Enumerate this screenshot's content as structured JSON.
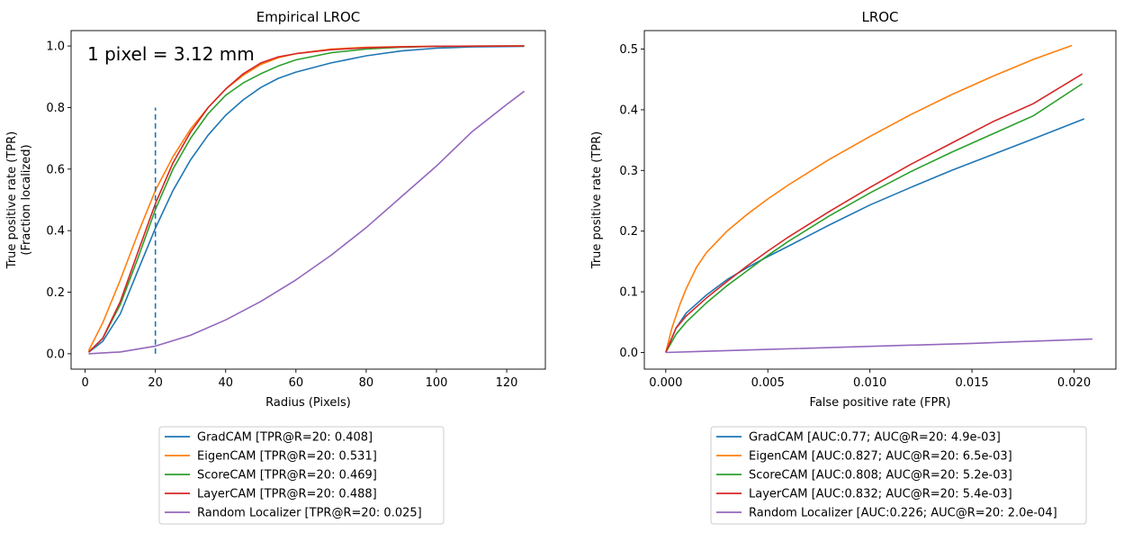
{
  "chart_data": [
    {
      "type": "line",
      "title": "Empirical LROC",
      "xlabel": "Radius (Pixels)",
      "ylabel": [
        "True positive rate (TPR)",
        "(Fraction localized)"
      ],
      "xlim": [
        -4,
        131
      ],
      "ylim": [
        -0.05,
        1.05
      ],
      "xticks": [
        0,
        20,
        40,
        60,
        80,
        100,
        120
      ],
      "xtick_labels": [
        "0",
        "20",
        "40",
        "60",
        "80",
        "100",
        "120"
      ],
      "yticks": [
        0.0,
        0.2,
        0.4,
        0.6,
        0.8,
        1.0
      ],
      "ytick_labels": [
        "0.0",
        "0.2",
        "0.4",
        "0.6",
        "0.8",
        "1.0"
      ],
      "grid": false,
      "legend_placement": "below",
      "annotation": "1 pixel = 3.12 mm",
      "vline": {
        "x": 20,
        "ymin": 0.0,
        "ymax": 0.8,
        "style": "dashed",
        "color": "#1f77b4"
      },
      "series": [
        {
          "name": "GradCAM [TPR@R=20: 0.408]",
          "color": "#1f77b4",
          "x": [
            1,
            5,
            10,
            15,
            20,
            25,
            30,
            35,
            40,
            45,
            50,
            55,
            60,
            70,
            80,
            90,
            100,
            110,
            125
          ],
          "y": [
            0.005,
            0.04,
            0.13,
            0.27,
            0.408,
            0.53,
            0.63,
            0.71,
            0.775,
            0.825,
            0.865,
            0.895,
            0.915,
            0.945,
            0.968,
            0.984,
            0.993,
            0.997,
            0.999
          ]
        },
        {
          "name": "EigenCAM [TPR@R=20: 0.531]",
          "color": "#ff7f0e",
          "x": [
            1,
            5,
            10,
            15,
            20,
            25,
            30,
            35,
            40,
            45,
            50,
            55,
            60,
            70,
            80,
            90,
            100,
            125
          ],
          "y": [
            0.01,
            0.1,
            0.24,
            0.39,
            0.531,
            0.64,
            0.73,
            0.8,
            0.86,
            0.905,
            0.94,
            0.962,
            0.975,
            0.99,
            0.996,
            0.998,
            0.999,
            1.0
          ]
        },
        {
          "name": "ScoreCAM [TPR@R=20: 0.469]",
          "color": "#2ca02c",
          "x": [
            1,
            5,
            10,
            15,
            20,
            25,
            30,
            35,
            40,
            45,
            50,
            55,
            60,
            70,
            80,
            90,
            100,
            125
          ],
          "y": [
            0.005,
            0.05,
            0.16,
            0.31,
            0.469,
            0.6,
            0.7,
            0.78,
            0.84,
            0.88,
            0.91,
            0.935,
            0.955,
            0.978,
            0.99,
            0.996,
            0.999,
            1.0
          ]
        },
        {
          "name": "LayerCAM [TPR@R=20: 0.488]",
          "color": "#d62728",
          "x": [
            1,
            5,
            10,
            15,
            20,
            25,
            30,
            35,
            40,
            45,
            50,
            55,
            60,
            70,
            80,
            90,
            100,
            125
          ],
          "y": [
            0.005,
            0.05,
            0.17,
            0.33,
            0.488,
            0.62,
            0.72,
            0.8,
            0.86,
            0.91,
            0.945,
            0.965,
            0.975,
            0.988,
            0.994,
            0.997,
            0.999,
            1.0
          ]
        },
        {
          "name": "Random Localizer [TPR@R=20: 0.025]",
          "color": "#9467bd",
          "x": [
            1,
            10,
            20,
            30,
            40,
            50,
            60,
            70,
            80,
            90,
            100,
            110,
            120,
            125
          ],
          "y": [
            0.0,
            0.006,
            0.025,
            0.06,
            0.11,
            0.17,
            0.24,
            0.32,
            0.41,
            0.51,
            0.61,
            0.72,
            0.81,
            0.853
          ]
        }
      ]
    },
    {
      "type": "line",
      "title": "LROC",
      "xlabel": "False positive rate (FPR)",
      "ylabel": [
        "True positive rate (TPR)"
      ],
      "xlim": [
        -0.00105,
        0.02205
      ],
      "ylim": [
        -0.0275,
        0.5305
      ],
      "xticks": [
        0.0,
        0.005,
        0.01,
        0.015,
        0.02
      ],
      "xtick_labels": [
        "0.000",
        "0.005",
        "0.010",
        "0.015",
        "0.020"
      ],
      "yticks": [
        0.0,
        0.1,
        0.2,
        0.3,
        0.4,
        0.5
      ],
      "ytick_labels": [
        "0.0",
        "0.1",
        "0.2",
        "0.3",
        "0.4",
        "0.5"
      ],
      "grid": false,
      "legend_placement": "below",
      "series": [
        {
          "name": "GradCAM [AUC:0.77; AUC@R=20: 4.9e-03]",
          "color": "#1f77b4",
          "x": [
            0,
            0.0005,
            0.001,
            0.002,
            0.003,
            0.004,
            0.005,
            0.006,
            0.008,
            0.01,
            0.012,
            0.014,
            0.016,
            0.018,
            0.0205
          ],
          "y": [
            0.0,
            0.04,
            0.065,
            0.095,
            0.12,
            0.14,
            0.158,
            0.175,
            0.21,
            0.243,
            0.272,
            0.3,
            0.326,
            0.352,
            0.385
          ]
        },
        {
          "name": "EigenCAM [AUC:0.827; AUC@R=20: 6.5e-03]",
          "color": "#ff7f0e",
          "x": [
            0,
            0.0003,
            0.0007,
            0.001,
            0.0015,
            0.002,
            0.003,
            0.004,
            0.005,
            0.006,
            0.008,
            0.01,
            0.012,
            0.014,
            0.016,
            0.018,
            0.0199
          ],
          "y": [
            0.0,
            0.04,
            0.08,
            0.105,
            0.14,
            0.165,
            0.2,
            0.228,
            0.253,
            0.276,
            0.318,
            0.356,
            0.392,
            0.425,
            0.455,
            0.483,
            0.506
          ]
        },
        {
          "name": "ScoreCAM [AUC:0.808; AUC@R=20: 5.2e-03]",
          "color": "#2ca02c",
          "x": [
            0,
            0.0005,
            0.001,
            0.002,
            0.003,
            0.004,
            0.005,
            0.006,
            0.008,
            0.01,
            0.012,
            0.014,
            0.016,
            0.018,
            0.0204
          ],
          "y": [
            0.0,
            0.03,
            0.05,
            0.082,
            0.11,
            0.135,
            0.16,
            0.183,
            0.225,
            0.263,
            0.298,
            0.33,
            0.36,
            0.39,
            0.443
          ]
        },
        {
          "name": "LayerCAM [AUC:0.832; AUC@R=20: 5.4e-03]",
          "color": "#d62728",
          "x": [
            0,
            0.0005,
            0.001,
            0.002,
            0.003,
            0.004,
            0.005,
            0.006,
            0.008,
            0.01,
            0.012,
            0.014,
            0.016,
            0.018,
            0.0204
          ],
          "y": [
            0.0,
            0.04,
            0.06,
            0.09,
            0.117,
            0.143,
            0.167,
            0.19,
            0.232,
            0.272,
            0.31,
            0.345,
            0.38,
            0.41,
            0.459
          ]
        },
        {
          "name": "Random Localizer [AUC:0.226; AUC@R=20: 2.0e-04]",
          "color": "#9467bd",
          "x": [
            0,
            0.005,
            0.01,
            0.015,
            0.0209
          ],
          "y": [
            0.0,
            0.005,
            0.01,
            0.015,
            0.022
          ]
        }
      ]
    }
  ]
}
